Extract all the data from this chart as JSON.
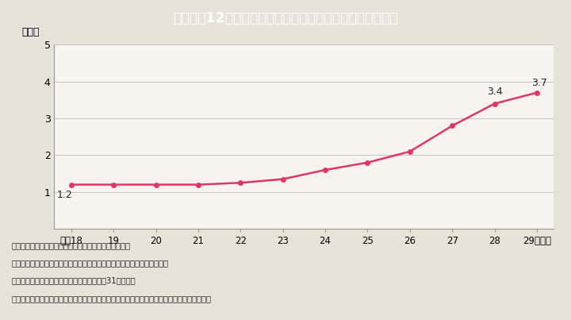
{
  "title": "Ｉ－２－12図　上場企業の役員に占める女性の割合の推移",
  "title_bg_color": "#3dbdd6",
  "title_text_color": "#ffffff",
  "bg_color": "#e8e2d8",
  "plot_bg_color": "#f7f4ef",
  "years": [
    "平成18",
    "19",
    "20",
    "21",
    "22",
    "23",
    "24",
    "25",
    "26",
    "27",
    "28",
    "29（年）"
  ],
  "x_values": [
    0,
    1,
    2,
    3,
    4,
    5,
    6,
    7,
    8,
    9,
    10,
    11
  ],
  "y_values": [
    1.2,
    1.2,
    1.2,
    1.2,
    1.25,
    1.35,
    1.6,
    1.8,
    2.1,
    2.8,
    3.4,
    3.7
  ],
  "line_color": "#e0356a",
  "marker_color": "#e0356a",
  "ylabel": "（％）",
  "ylim": [
    0,
    5
  ],
  "yticks": [
    0,
    1,
    2,
    3,
    4,
    5
  ],
  "annotate_first": "1.2",
  "annotate_28": "3.4",
  "annotate_29": "3.7",
  "footnote_lines": [
    "（備考）１．東洋経済新報社「役員四季報」より作成。",
    "　　　　２．調査対象は，全上場企業（ジャスダック上場会社を含む）。",
    "　　　　３．調査時点は原則として各年７月31日現在。",
    "　　　　４．「役員」は，取締役，監査役，指名委員会等設置会社の代表執行役及び執行役。"
  ]
}
